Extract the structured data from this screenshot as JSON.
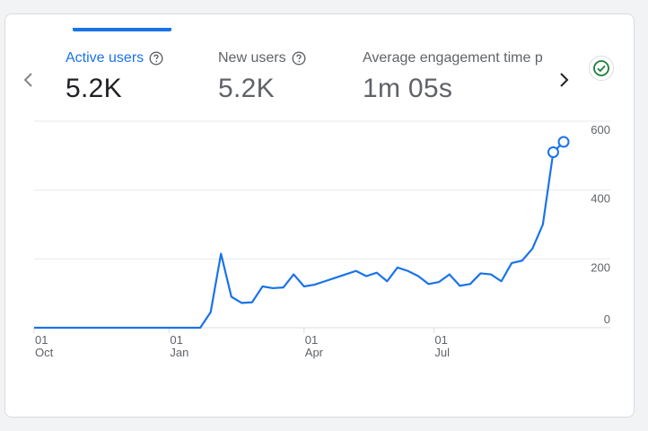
{
  "metrics": [
    {
      "label": "Active users",
      "value": "5.2K",
      "active": true
    },
    {
      "label": "New users",
      "value": "5.2K",
      "active": false
    },
    {
      "label": "Average engagement time p",
      "value": "1m 05s",
      "active": false
    }
  ],
  "icons": {
    "help": "help-circle-icon",
    "prev": "chevron-left-icon",
    "next": "chevron-right-icon",
    "status": "check-circle-icon"
  },
  "colors": {
    "accent": "#1a73e8",
    "status_green": "#188038",
    "grid": "#e8eaed",
    "axis_text": "#5f6368"
  },
  "chart_data": {
    "type": "line",
    "series": [
      {
        "values": [
          0,
          0,
          0,
          0,
          0,
          0,
          0,
          0,
          0,
          0,
          0,
          0,
          0,
          0,
          0,
          0,
          0,
          45,
          215,
          90,
          72,
          74,
          120,
          115,
          117,
          155,
          120,
          125,
          135,
          145,
          155,
          165,
          150,
          160,
          135,
          175,
          165,
          150,
          127,
          133,
          155,
          122,
          127,
          158,
          155,
          135,
          188,
          195,
          230,
          300,
          510,
          540
        ]
      }
    ],
    "x_ticks": [
      {
        "day": "01",
        "month": "Oct"
      },
      {
        "day": "01",
        "month": "Jan"
      },
      {
        "day": "01",
        "month": "Apr"
      },
      {
        "day": "01",
        "month": "Jul"
      }
    ],
    "x_tick_indices": [
      0,
      13,
      26,
      38.5
    ],
    "y_ticks": [
      "0",
      "200",
      "400",
      "600"
    ],
    "y_tick_values": [
      0,
      200,
      400,
      600
    ],
    "ylim": [
      0,
      600
    ],
    "highlighted_points": [
      50,
      51
    ],
    "grid": true
  }
}
